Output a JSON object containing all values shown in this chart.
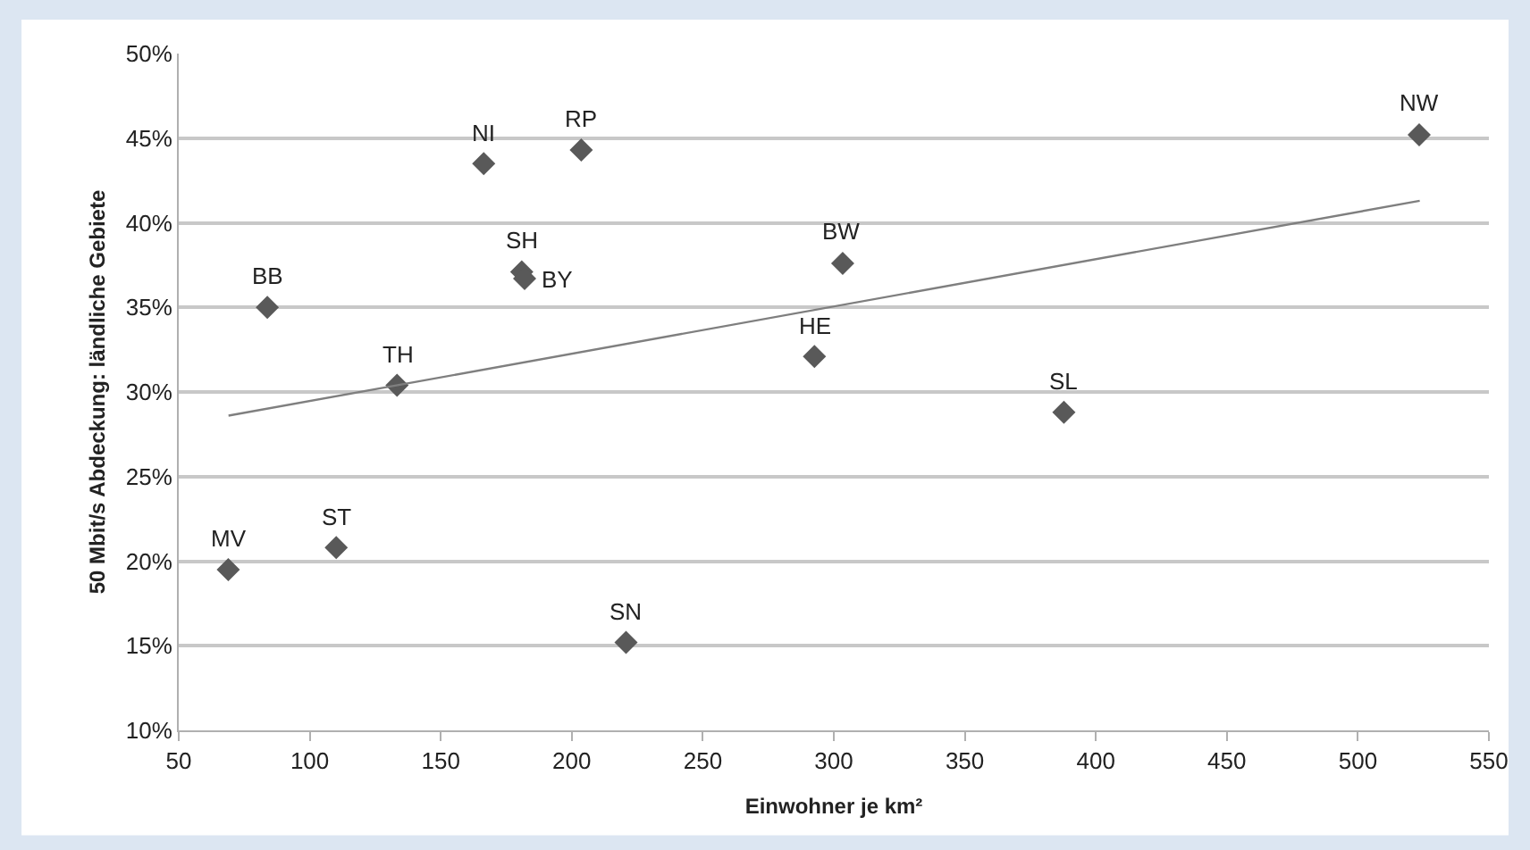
{
  "chart_data": {
    "type": "scatter",
    "xlabel": "Einwohner je km²",
    "ylabel": "50 Mbit/s Abdeckung: ländliche Gebiete",
    "series": [
      {
        "color": "#595959",
        "marker": "diamond",
        "x": [
          68.9,
          83.8,
          110.1,
          133.3,
          166.4,
          180.9,
          182,
          203.6,
          220.7,
          292.6,
          303.4,
          387.8,
          523.4
        ],
        "values": [
          19.5,
          35.0,
          20.8,
          30.4,
          43.5,
          37.1,
          36.7,
          44.3,
          15.2,
          32.1,
          37.6,
          28.8,
          45.2
        ]
      },
      {
        "type": "line",
        "color": "#7f7f7f",
        "marker": "none",
        "x": [
          69,
          523.6
        ],
        "values": [
          28.6,
          41.3
        ]
      }
    ],
    "annotations": [
      {
        "text": "MV",
        "x": 68.9,
        "y": 19.5
      },
      {
        "text": "BB",
        "x": 83.8,
        "y": 35.0
      },
      {
        "text": "ST",
        "x": 110.1,
        "y": 20.8
      },
      {
        "text": "TH",
        "x": 133.3,
        "y": 30.4
      },
      {
        "text": "NI",
        "x": 166.4,
        "y": 43.5
      },
      {
        "text": "SH",
        "x": 180.9,
        "y": 37.1
      },
      {
        "text": "BY",
        "x": 182,
        "y": 36.7
      },
      {
        "text": "RP",
        "x": 203.6,
        "y": 44.3
      },
      {
        "text": "SN",
        "x": 220.7,
        "y": 15.2
      },
      {
        "text": "HE",
        "x": 292.6,
        "y": 32.1
      },
      {
        "text": "BW",
        "x": 303.4,
        "y": 37.6
      },
      {
        "text": "SL",
        "x": 387.8,
        "y": 28.8
      },
      {
        "text": "NW",
        "x": 523.4,
        "y": 45.2
      }
    ],
    "xlim": [
      50,
      550
    ],
    "xticks": [
      50,
      100,
      150,
      200,
      250,
      300,
      350,
      400,
      450,
      500,
      550
    ],
    "ylim": [
      10,
      50
    ],
    "yticks": [
      {
        "value": 10,
        "label": "10%"
      },
      {
        "value": 15,
        "label": "15%"
      },
      {
        "value": 20,
        "label": "20%"
      },
      {
        "value": 25,
        "label": "25%"
      },
      {
        "value": 30,
        "label": "30%"
      },
      {
        "value": 35,
        "label": "35%"
      },
      {
        "value": 40,
        "label": "40%"
      },
      {
        "value": 45,
        "label": "45%"
      },
      {
        "value": 50,
        "label": "50%"
      }
    ],
    "grid": "y"
  }
}
